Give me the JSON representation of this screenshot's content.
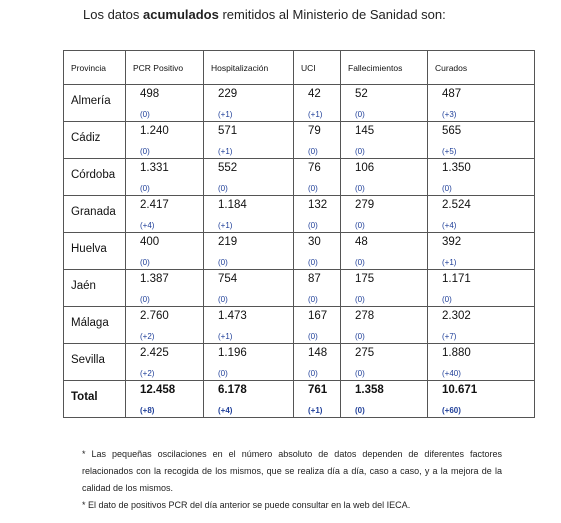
{
  "intro": {
    "before": "Los datos ",
    "bold": "acumulados",
    "after": " remitidos al Ministerio de Sanidad son:"
  },
  "table": {
    "headers": [
      "Provincia",
      "PCR Positivo",
      "Hospitalización",
      "UCI",
      "Fallecimientos",
      "Curados"
    ],
    "rows": [
      {
        "provincia": "Almería",
        "pcr": "498",
        "pcr_d": "(0)",
        "hosp": "229",
        "hosp_d": "(+1)",
        "uci": "42",
        "uci_d": "(+1)",
        "fall": "52",
        "fall_d": "(0)",
        "cur": "487",
        "cur_d": "(+3)"
      },
      {
        "provincia": "Cádiz",
        "pcr": "1.240",
        "pcr_d": "(0)",
        "hosp": "571",
        "hosp_d": "(+1)",
        "uci": "79",
        "uci_d": "(0)",
        "fall": "145",
        "fall_d": "(0)",
        "cur": "565",
        "cur_d": "(+5)"
      },
      {
        "provincia": "Córdoba",
        "pcr": "1.331",
        "pcr_d": "(0)",
        "hosp": "552",
        "hosp_d": "(0)",
        "uci": "76",
        "uci_d": "(0)",
        "fall": "106",
        "fall_d": "(0)",
        "cur": "1.350",
        "cur_d": "(0)"
      },
      {
        "provincia": "Granada",
        "pcr": "2.417",
        "pcr_d": "(+4)",
        "hosp": "1.184",
        "hosp_d": "(+1)",
        "uci": "132",
        "uci_d": "(0)",
        "fall": "279",
        "fall_d": "(0)",
        "cur": "2.524",
        "cur_d": "(+4)"
      },
      {
        "provincia": "Huelva",
        "pcr": "400",
        "pcr_d": "(0)",
        "hosp": "219",
        "hosp_d": "(0)",
        "uci": "30",
        "uci_d": "(0)",
        "fall": "48",
        "fall_d": "(0)",
        "cur": "392",
        "cur_d": "(+1)"
      },
      {
        "provincia": "Jaén",
        "pcr": "1.387",
        "pcr_d": "(0)",
        "hosp": "754",
        "hosp_d": "(0)",
        "uci": "87",
        "uci_d": "(0)",
        "fall": "175",
        "fall_d": "(0)",
        "cur": "1.171",
        "cur_d": "(0)"
      },
      {
        "provincia": "Málaga",
        "pcr": "2.760",
        "pcr_d": "(+2)",
        "hosp": "1.473",
        "hosp_d": "(+1)",
        "uci": "167",
        "uci_d": "(0)",
        "fall": "278",
        "fall_d": "(0)",
        "cur": "2.302",
        "cur_d": "(+7)"
      },
      {
        "provincia": "Sevilla",
        "pcr": "2.425",
        "pcr_d": "(+2)",
        "hosp": "1.196",
        "hosp_d": "(0)",
        "uci": "148",
        "uci_d": "(0)",
        "fall": "275",
        "fall_d": "(0)",
        "cur": "1.880",
        "cur_d": "(+40)"
      }
    ],
    "total": {
      "provincia": "Total",
      "pcr": "12.458",
      "pcr_d": "(+8)",
      "hosp": "6.178",
      "hosp_d": "(+4)",
      "uci": "761",
      "uci_d": "(+1)",
      "fall": "1.358",
      "fall_d": "(0)",
      "cur": "10.671",
      "cur_d": "(+60)"
    }
  },
  "notes": [
    "* Las pequeñas oscilaciones en el número absoluto de datos dependen de diferentes factores relacionados con la recogida de los mismos, que se realiza día a día, caso a caso, y a la mejora de la calidad de los mismos.",
    "* El dato de positivos PCR del día anterior se puede consultar en la web del IECA."
  ],
  "colors": {
    "delta": "#1f3f99",
    "border": "#555555"
  }
}
